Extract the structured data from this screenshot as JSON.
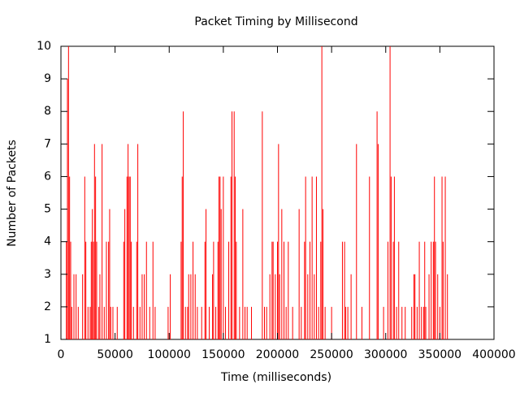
{
  "chart_data": {
    "type": "impulse",
    "title": "Packet Timing by Millisecond",
    "xlabel": "Time (milliseconds)",
    "ylabel": "Number of Packets",
    "color": "#ff0000",
    "xlim": [
      0,
      400000
    ],
    "xticks": [
      0,
      50000,
      100000,
      150000,
      200000,
      250000,
      300000,
      350000,
      400000
    ],
    "ylim": [
      1,
      10
    ],
    "yticks": [
      1,
      2,
      3,
      4,
      5,
      6,
      7,
      8,
      9,
      10
    ],
    "x": [
      5000,
      6000,
      7000,
      8000,
      9000,
      10000,
      12000,
      14000,
      16000,
      20000,
      22000,
      23000,
      25000,
      27000,
      28000,
      29000,
      30000,
      31000,
      32000,
      33000,
      35000,
      36000,
      38000,
      40000,
      42000,
      44000,
      45000,
      46000,
      48000,
      52000,
      58000,
      59000,
      61000,
      62000,
      63000,
      64000,
      65000,
      67000,
      70000,
      71000,
      73000,
      75000,
      77000,
      79000,
      82000,
      85000,
      87000,
      99000,
      101000,
      111000,
      112000,
      113000,
      115000,
      117000,
      118000,
      120000,
      122000,
      124000,
      126000,
      130000,
      133000,
      134000,
      137000,
      140000,
      141000,
      143000,
      145000,
      146000,
      147000,
      148000,
      150000,
      152000,
      155000,
      157000,
      158000,
      160000,
      161000,
      162000,
      165000,
      168000,
      170000,
      172000,
      176000,
      186000,
      188000,
      190000,
      193000,
      195000,
      196000,
      198000,
      200000,
      201000,
      202000,
      204000,
      206000,
      208000,
      210000,
      214000,
      220000,
      222000,
      225000,
      226000,
      228000,
      230000,
      232000,
      234000,
      236000,
      238000,
      240000,
      241000,
      242000,
      244000,
      250000,
      260000,
      262000,
      263000,
      265000,
      268000,
      273000,
      278000,
      285000,
      292000,
      293000,
      298000,
      302000,
      304000,
      305000,
      307000,
      308000,
      310000,
      312000,
      315000,
      318000,
      324000,
      326000,
      327000,
      329000,
      331000,
      333000,
      335000,
      336000,
      337000,
      340000,
      342000,
      344000,
      345000,
      346000,
      348000,
      350000,
      352000,
      353000,
      355000,
      357000
    ],
    "values": [
      4,
      9,
      10,
      6,
      4,
      2,
      3,
      3,
      2,
      3,
      6,
      4,
      2,
      2,
      4,
      5,
      4,
      7,
      6,
      4,
      2,
      3,
      7,
      2,
      4,
      4,
      5,
      2,
      2,
      2,
      4,
      5,
      6,
      7,
      6,
      6,
      4,
      2,
      4,
      7,
      2,
      3,
      3,
      4,
      2,
      4,
      2,
      2,
      3,
      4,
      6,
      8,
      2,
      2,
      3,
      3,
      4,
      3,
      2,
      2,
      4,
      5,
      2,
      3,
      4,
      2,
      4,
      6,
      6,
      5,
      6,
      2,
      4,
      6,
      8,
      8,
      6,
      4,
      2,
      5,
      2,
      2,
      2,
      8,
      2,
      2,
      3,
      4,
      4,
      3,
      4,
      7,
      3,
      5,
      4,
      2,
      4,
      2,
      5,
      2,
      4,
      6,
      3,
      4,
      6,
      3,
      6,
      2,
      4,
      10,
      5,
      2,
      2,
      4,
      4,
      2,
      2,
      3,
      7,
      2,
      6,
      8,
      7,
      2,
      4,
      10,
      6,
      4,
      6,
      2,
      4,
      2,
      2,
      2,
      3,
      3,
      2,
      4,
      2,
      2,
      4,
      2,
      3,
      4,
      4,
      6,
      4,
      3,
      2,
      6,
      4,
      6,
      3
    ]
  }
}
